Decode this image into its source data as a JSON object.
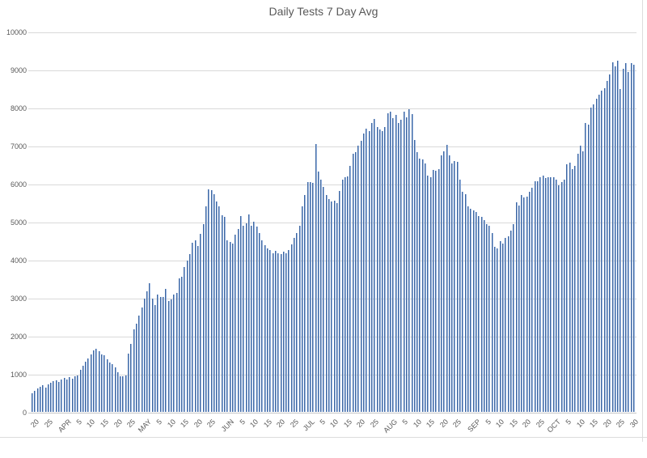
{
  "chart": {
    "title": "Daily Tests 7 Day Avg"
  },
  "chart_data": {
    "type": "bar",
    "title": "Daily Tests 7 Day Avg",
    "xlabel": "",
    "ylabel": "",
    "x_description": "daily values from Mar 20 through Oct 31, one bar per day",
    "x_start_label": "Mar 20",
    "ylim": [
      0,
      10000
    ],
    "grid": true,
    "legend_position": "none",
    "y_tick_labels": [
      "0",
      "1000",
      "2000",
      "3000",
      "4000",
      "5000",
      "6000",
      "7000",
      "8000",
      "9000",
      "10000"
    ],
    "x_tick_labels": [
      "20",
      "25",
      "APR",
      "5",
      "10",
      "15",
      "20",
      "25",
      "MAY",
      "5",
      "10",
      "15",
      "20",
      "25",
      "JUN",
      "5",
      "10",
      "15",
      "20",
      "25",
      "JUL",
      "5",
      "10",
      "15",
      "20",
      "25",
      "AUG",
      "5",
      "10",
      "15",
      "20",
      "25",
      "SEP",
      "5",
      "10",
      "15",
      "20",
      "25",
      "OCT",
      "5",
      "10",
      "15",
      "20",
      "25",
      "30"
    ],
    "x_tick_positions": [
      0,
      5,
      12,
      16,
      21,
      26,
      31,
      36,
      42,
      46,
      51,
      56,
      61,
      66,
      73,
      77,
      82,
      87,
      92,
      97,
      103,
      107,
      112,
      117,
      122,
      127,
      134,
      138,
      143,
      148,
      153,
      158,
      165,
      169,
      174,
      179,
      184,
      189,
      195,
      199,
      204,
      209,
      214,
      219,
      224
    ],
    "values": [
      480,
      550,
      620,
      660,
      700,
      645,
      730,
      770,
      800,
      840,
      790,
      860,
      895,
      860,
      910,
      875,
      930,
      965,
      1100,
      1215,
      1320,
      1405,
      1500,
      1620,
      1650,
      1600,
      1520,
      1480,
      1380,
      1300,
      1250,
      1180,
      1040,
      930,
      930,
      965,
      1530,
      1780,
      2170,
      2310,
      2525,
      2740,
      2985,
      3165,
      3375,
      2985,
      2810,
      3090,
      3020,
      3020,
      3235,
      2915,
      2950,
      3090,
      3130,
      3515,
      3555,
      3800,
      3980,
      4155,
      4440,
      4510,
      4370,
      4690,
      4940,
      5400,
      5850,
      5830,
      5720,
      5530,
      5400,
      5180,
      5120,
      4500,
      4460,
      4430,
      4650,
      4800,
      5150,
      4900,
      4950,
      5200,
      4900,
      5000,
      4880,
      4700,
      4520,
      4380,
      4300,
      4250,
      4180,
      4230,
      4160,
      4150,
      4220,
      4180,
      4260,
      4400,
      4570,
      4700,
      4900,
      5400,
      5700,
      6050,
      6050,
      6020,
      7050,
      6320,
      6100,
      5920,
      5700,
      5600,
      5530,
      5560,
      5480,
      5800,
      6100,
      6180,
      6200,
      6460,
      6780,
      6820,
      6990,
      7130,
      7320,
      7450,
      7390,
      7600,
      7700,
      7480,
      7420,
      7390,
      7480,
      7850,
      7890,
      7730,
      7800,
      7600,
      7680,
      7900,
      7750,
      7950,
      7820,
      7150,
      6820,
      6650,
      6640,
      6530,
      6210,
      6180,
      6360,
      6330,
      6390,
      6750,
      6850,
      7030,
      6750,
      6530,
      6600,
      6570,
      6100,
      5790,
      5720,
      5400,
      5330,
      5290,
      5260,
      5150,
      5120,
      5040,
      4940,
      4900,
      4700,
      4350,
      4300,
      4480,
      4430,
      4580,
      4620,
      4760,
      4940,
      5500,
      5430,
      5710,
      5640,
      5670,
      5790,
      5890,
      6070,
      6060,
      6175,
      6210,
      6140,
      6175,
      6160,
      6175,
      6105,
      5965,
      6035,
      6105,
      6500,
      6560,
      6390,
      6460,
      6780,
      7000,
      6850,
      7600,
      7560,
      7990,
      8090,
      8230,
      8340,
      8450,
      8520,
      8700,
      8870,
      9190,
      9080,
      9230,
      8490,
      9020,
      9170,
      8940,
      9160,
      9130
    ],
    "colors": {
      "bar_dark": "#3a649f",
      "bar_light": "#9db7e0",
      "gridline": "#d9d9d9",
      "axis_line": "#c6c6c6",
      "label_text": "#595959",
      "chart_border": "#dcdcdc",
      "background": "#ffffff"
    }
  }
}
